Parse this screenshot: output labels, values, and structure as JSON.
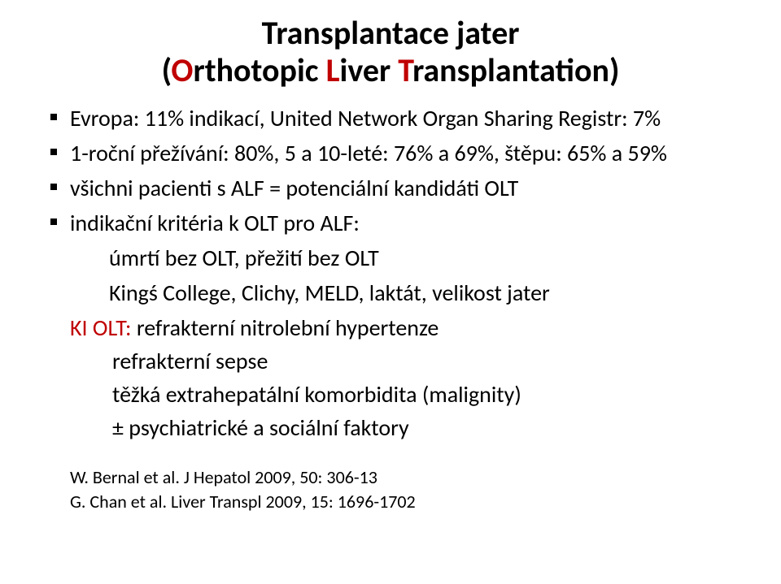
{
  "title": {
    "line1": "Transplantace jater",
    "line2_open": "(",
    "line2_o": "O",
    "line2_mid1": "rthotopic ",
    "line2_l": "L",
    "line2_mid2": "iver ",
    "line2_t": "T",
    "line2_end": "ransplantation)",
    "fontsize_pt": 40,
    "color_accent": "#c00000",
    "color_text": "#000000"
  },
  "bullets": [
    "Evropa: 11% indikací, United Network Organ Sharing Registr: 7%",
    "1-roční přežívání: 80%, 5 a 10-leté: 76% a 69%, štěpu: 65% a 59%",
    "všichni pacienti s ALF = potenciální kandidáti OLT",
    "indikační kritéria k OLT pro ALF:"
  ],
  "sublines": {
    "umrti": "úmrtí bez OLT, přežití bez OLT",
    "kings": "Kingś College, Clichy, MELD, laktát, velikost jater"
  },
  "ki": {
    "label": "KI OLT:",
    "line1_rest": "  refrakterní nitrolební hypertenze",
    "line2": "refrakterní sepse",
    "line3": "těžká extrahepatální komorbidita (malignity)",
    "line4": "± psychiatrické a sociální faktory"
  },
  "refs": [
    "W. Bernal et al. J Hepatol 2009, 50: 306-13",
    "G. Chan  et al. Liver Transpl 2009, 15: 1696-1702"
  ],
  "style": {
    "background": "#ffffff",
    "body_fontsize_pt": 28,
    "ref_fontsize_pt": 22,
    "bullet_color": "#000000",
    "accent_color": "#c00000",
    "font_family": "Calibri"
  }
}
